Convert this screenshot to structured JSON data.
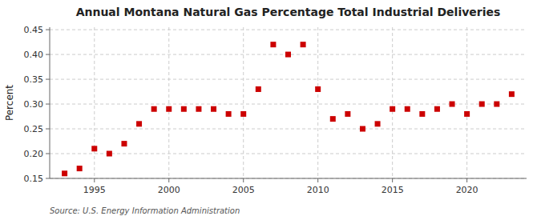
{
  "chart_data": {
    "type": "scatter",
    "title": "Annual Montana Natural Gas Percentage Total Industrial Deliveries",
    "y_label": "Percent",
    "annotations": [
      "Source: U.S. Energy Information Administration"
    ],
    "x": [
      1993,
      1994,
      1995,
      1996,
      1997,
      1998,
      1999,
      2000,
      2001,
      2002,
      2003,
      2004,
      2005,
      2006,
      2007,
      2008,
      2009,
      2010,
      2011,
      2012,
      2013,
      2014,
      2015,
      2016,
      2017,
      2018,
      2019,
      2020,
      2021,
      2022,
      2023
    ],
    "values": [
      0.16,
      0.17,
      0.21,
      0.2,
      0.22,
      0.26,
      0.29,
      0.29,
      0.29,
      0.29,
      0.29,
      0.28,
      0.28,
      0.33,
      0.42,
      0.4,
      0.42,
      0.33,
      0.27,
      0.28,
      0.25,
      0.26,
      0.29,
      0.29,
      0.28,
      0.29,
      0.3,
      0.28,
      0.3,
      0.3,
      0.32
    ],
    "xlim": [
      1992,
      2024
    ],
    "xticks": [
      1995,
      2000,
      2005,
      2010,
      2015,
      2020
    ],
    "ylim": [
      0.15,
      0.455
    ],
    "yticks": [
      0.15,
      {
        "value": 0.2,
        "label": "0.20"
      },
      0.25,
      {
        "value": 0.3,
        "label": "0.30"
      },
      0.35,
      {
        "value": 0.4,
        "label": "0.40"
      },
      0.45
    ],
    "color": "#cc0000",
    "marker": "square",
    "grid": true
  }
}
